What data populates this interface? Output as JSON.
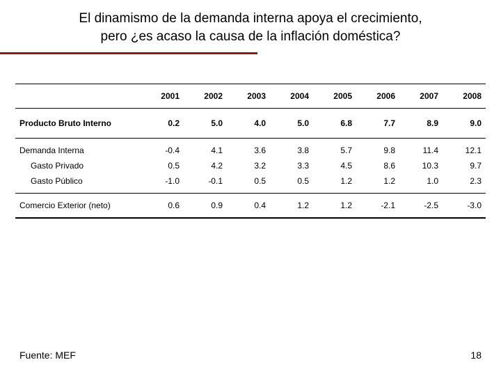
{
  "title_line1": "El dinamismo de la demanda interna apoya el crecimiento,",
  "title_line2": "pero ¿es acaso la causa de la inflación doméstica?",
  "accent_color": "#8b1a1a",
  "years": [
    "2001",
    "2002",
    "2003",
    "2004",
    "2005",
    "2006",
    "2007",
    "2008"
  ],
  "rows": [
    {
      "label": "Producto Bruto Interno",
      "vals": [
        "0.2",
        "5.0",
        "4.0",
        "5.0",
        "6.8",
        "7.7",
        "8.9",
        "9.0"
      ],
      "bold": true,
      "section": true
    },
    {
      "label": "Demanda Interna",
      "vals": [
        "-0.4",
        "4.1",
        "3.6",
        "3.8",
        "5.7",
        "9.8",
        "11.4",
        "12.1"
      ],
      "group_first": true
    },
    {
      "label": "Gasto Privado",
      "vals": [
        "0.5",
        "4.2",
        "3.2",
        "3.3",
        "4.5",
        "8.6",
        "10.3",
        "9.7"
      ],
      "indent": true
    },
    {
      "label": "Gasto Público",
      "vals": [
        "-1.0",
        "-0.1",
        "0.5",
        "0.5",
        "1.2",
        "1.2",
        "1.0",
        "2.3"
      ],
      "indent": true,
      "group_last": true
    },
    {
      "label": "Comercio Exterior (neto)",
      "vals": [
        "0.6",
        "0.9",
        "0.4",
        "1.2",
        "1.2",
        "-2.1",
        "-2.5",
        "-3.0"
      ],
      "neto": true
    }
  ],
  "source_label": "Fuente: MEF",
  "page_number": "18"
}
